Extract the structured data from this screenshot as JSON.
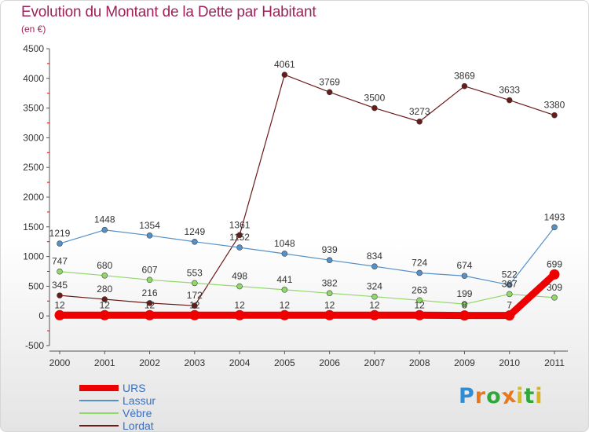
{
  "header": {
    "title": "Evolution du Montant de la Dette par Habitant",
    "subtitle": "(en €)"
  },
  "logo": {
    "letters": [
      "P",
      "r",
      "o",
      "x",
      "i",
      "t",
      "i"
    ],
    "colors": [
      "#2f8dd6",
      "#e8781e",
      "#2fa83a",
      "#e8781e",
      "#d6ba1f",
      "#2fa83a",
      "#d6b31f"
    ]
  },
  "chart_data": {
    "type": "line",
    "title": "Evolution du Montant de la Dette par Habitant",
    "subtitle": "(en €)",
    "x": [
      "2000",
      "2001",
      "2002",
      "2003",
      "2004",
      "2005",
      "2006",
      "2007",
      "2008",
      "2009",
      "2010",
      "2011"
    ],
    "ylim": [
      -500,
      4500
    ],
    "yticks": [
      "-500",
      "0",
      "500",
      "1000",
      "1500",
      "2000",
      "2500",
      "3000",
      "3500",
      "4000",
      "4500"
    ],
    "grid": false,
    "legend_position": "bottom-left",
    "series": [
      {
        "name": "Lordat",
        "color": "#6b1a1a",
        "values": [
          345,
          280,
          216,
          172,
          1361,
          4061,
          3769,
          3500,
          3273,
          3869,
          3633,
          3380
        ]
      },
      {
        "name": "Vèbre",
        "color": "#90d86a",
        "values": [
          747,
          680,
          607,
          553,
          498,
          441,
          382,
          324,
          263,
          199,
          367,
          309
        ]
      },
      {
        "name": "Lassur",
        "color": "#5590c8",
        "values": [
          1219,
          1448,
          1354,
          1249,
          1152,
          1048,
          939,
          834,
          724,
          674,
          522,
          1493
        ]
      },
      {
        "name": "URS",
        "color": "#ee0000",
        "values": [
          12,
          12,
          12,
          12,
          12,
          12,
          12,
          12,
          12,
          8,
          7,
          699
        ]
      }
    ],
    "legend_order": [
      "URS",
      "Lassur",
      "Vèbre",
      "Lordat"
    ]
  }
}
